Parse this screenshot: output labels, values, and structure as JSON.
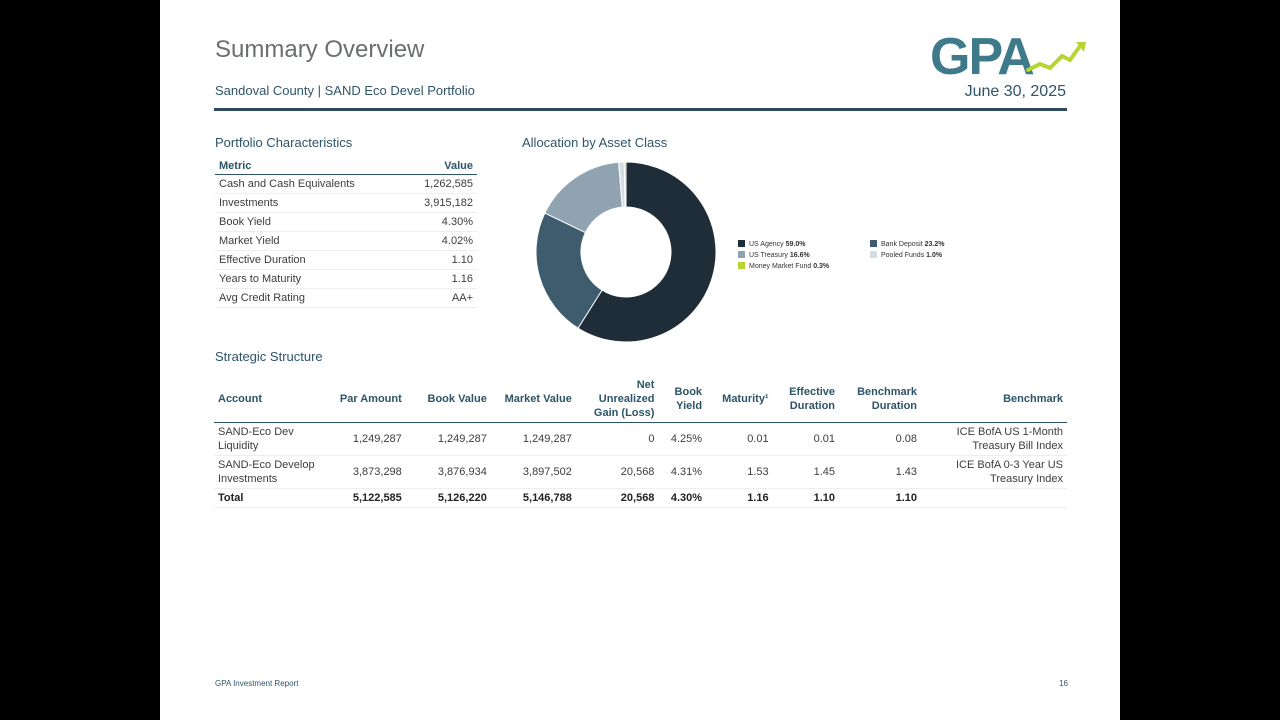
{
  "header": {
    "title": "Summary Overview",
    "subtitle": "Sandoval County | SAND Eco Devel Portfolio",
    "date": "June 30, 2025",
    "logo_text": "GPA"
  },
  "colors": {
    "brand_teal": "#3f7a8a",
    "brand_green": "#b7d433",
    "rule": "#2f4a5c",
    "text_blue": "#2e5468"
  },
  "portfolio": {
    "title": "Portfolio Characteristics",
    "columns": [
      "Metric",
      "Value"
    ],
    "rows": [
      {
        "metric": "Cash and Cash Equivalents",
        "value": "1,262,585"
      },
      {
        "metric": "Investments",
        "value": "3,915,182"
      },
      {
        "metric": "Book Yield",
        "value": "4.30%"
      },
      {
        "metric": "Market Yield",
        "value": "4.02%"
      },
      {
        "metric": "Effective Duration",
        "value": "1.10"
      },
      {
        "metric": "Years to Maturity",
        "value": "1.16"
      },
      {
        "metric": "Avg Credit Rating",
        "value": "AA+"
      }
    ]
  },
  "allocation": {
    "title": "Allocation by Asset Class"
  },
  "chart_data": {
    "type": "pie",
    "categories": [
      "US Agency",
      "Bank Deposit",
      "US Treasury",
      "Pooled Funds",
      "Money Market Fund"
    ],
    "values": [
      59.0,
      23.2,
      16.6,
      1.0,
      0.3
    ],
    "value_labels": [
      "59.0%",
      "23.2%",
      "16.6%",
      "1.0%",
      "0.3%"
    ],
    "colors": [
      "#1f2d38",
      "#3f5b6e",
      "#8fa3b0",
      "#d3dde3",
      "#b7d433"
    ],
    "legend_position": "right",
    "title": ""
  },
  "strategic": {
    "title": "Strategic Structure",
    "columns": [
      {
        "key": "account",
        "label": "Account"
      },
      {
        "key": "par",
        "label": "Par Amount"
      },
      {
        "key": "book",
        "label": "Book Value"
      },
      {
        "key": "market",
        "label": "Market Value"
      },
      {
        "key": "gain",
        "label": "Net Unrealized Gain (Loss)"
      },
      {
        "key": "yield",
        "label": "Book Yield"
      },
      {
        "key": "maturity",
        "label": "Maturity¹"
      },
      {
        "key": "eff_dur",
        "label": "Effective Duration"
      },
      {
        "key": "bm_dur",
        "label": "Benchmark Duration"
      },
      {
        "key": "benchmark",
        "label": "Benchmark"
      }
    ],
    "rows": [
      {
        "account": "SAND-Eco Dev Liquidity",
        "par": "1,249,287",
        "book": "1,249,287",
        "market": "1,249,287",
        "gain": "0",
        "yield": "4.25%",
        "maturity": "0.01",
        "eff_dur": "0.01",
        "bm_dur": "0.08",
        "benchmark": "ICE BofA US 1-Month Treasury Bill Index"
      },
      {
        "account": "SAND-Eco Develop Investments",
        "par": "3,873,298",
        "book": "3,876,934",
        "market": "3,897,502",
        "gain": "20,568",
        "yield": "4.31%",
        "maturity": "1.53",
        "eff_dur": "1.45",
        "bm_dur": "1.43",
        "benchmark": "ICE BofA 0-3 Year US Treasury Index"
      }
    ],
    "total": {
      "account": "Total",
      "par": "5,122,585",
      "book": "5,126,220",
      "market": "5,146,788",
      "gain": "20,568",
      "yield": "4.30%",
      "maturity": "1.16",
      "eff_dur": "1.10",
      "bm_dur": "1.10",
      "benchmark": ""
    }
  },
  "footer": {
    "text": "GPA Investment Report",
    "page": "16"
  }
}
